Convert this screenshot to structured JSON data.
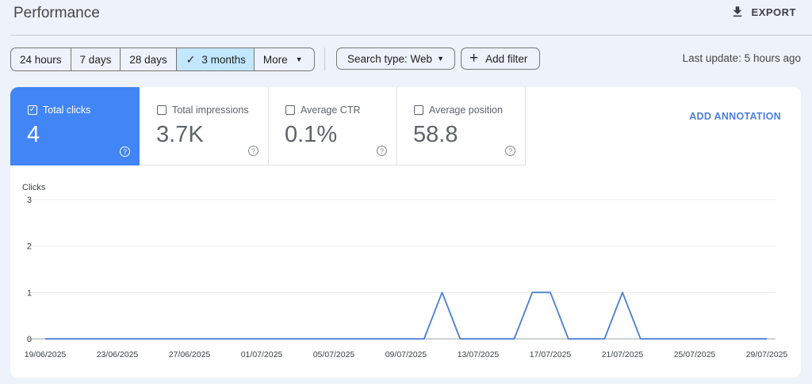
{
  "header": {
    "title": "Performance",
    "export_label": "EXPORT"
  },
  "toolbar": {
    "ranges": [
      "24 hours",
      "7 days",
      "28 days",
      "3 months"
    ],
    "selected_range": "3 months",
    "more_label": "More",
    "search_type_label": "Search type: Web",
    "add_filter_label": "Add filter",
    "last_update": "Last update: 5 hours ago"
  },
  "metrics": [
    {
      "label": "Total clicks",
      "value": "4",
      "checked": true
    },
    {
      "label": "Total impressions",
      "value": "3.7K",
      "checked": false
    },
    {
      "label": "Average CTR",
      "value": "0.1%",
      "checked": false
    },
    {
      "label": "Average position",
      "value": "58.8",
      "checked": false
    }
  ],
  "annotation_label": "ADD ANNOTATION",
  "colors": {
    "accent": "#4285f4",
    "selected_segment": "#c2e7ff",
    "line": "#4a7fd0"
  },
  "chart_data": {
    "type": "line",
    "title": "",
    "ylabel": "Clicks",
    "xlabel": "",
    "ylim": [
      0,
      3
    ],
    "y_ticks": [
      0,
      1,
      2,
      3
    ],
    "x_tick_labels": [
      "19/06/2025",
      "23/06/2025",
      "27/06/2025",
      "01/07/2025",
      "05/07/2025",
      "09/07/2025",
      "13/07/2025",
      "17/07/2025",
      "21/07/2025",
      "25/07/2025",
      "29/07/2025"
    ],
    "grid": true,
    "series": [
      {
        "dates": [
          "19/06/2025",
          "20/06/2025",
          "21/06/2025",
          "22/06/2025",
          "23/06/2025",
          "24/06/2025",
          "25/06/2025",
          "26/06/2025",
          "27/06/2025",
          "28/06/2025",
          "29/06/2025",
          "30/06/2025",
          "01/07/2025",
          "02/07/2025",
          "03/07/2025",
          "04/07/2025",
          "05/07/2025",
          "06/07/2025",
          "07/07/2025",
          "08/07/2025",
          "09/07/2025",
          "10/07/2025",
          "11/07/2025",
          "12/07/2025",
          "13/07/2025",
          "14/07/2025",
          "15/07/2025",
          "16/07/2025",
          "17/07/2025",
          "18/07/2025",
          "19/07/2025",
          "20/07/2025",
          "21/07/2025",
          "22/07/2025",
          "23/07/2025",
          "24/07/2025",
          "25/07/2025",
          "26/07/2025",
          "27/07/2025",
          "28/07/2025",
          "29/07/2025"
        ],
        "values": [
          0,
          0,
          0,
          0,
          0,
          0,
          0,
          0,
          0,
          0,
          0,
          0,
          0,
          0,
          0,
          0,
          0,
          0,
          0,
          0,
          0,
          0,
          1,
          0,
          0,
          0,
          0,
          1,
          1,
          0,
          0,
          0,
          1,
          0,
          0,
          0,
          0,
          0,
          0,
          0,
          0
        ]
      }
    ]
  }
}
